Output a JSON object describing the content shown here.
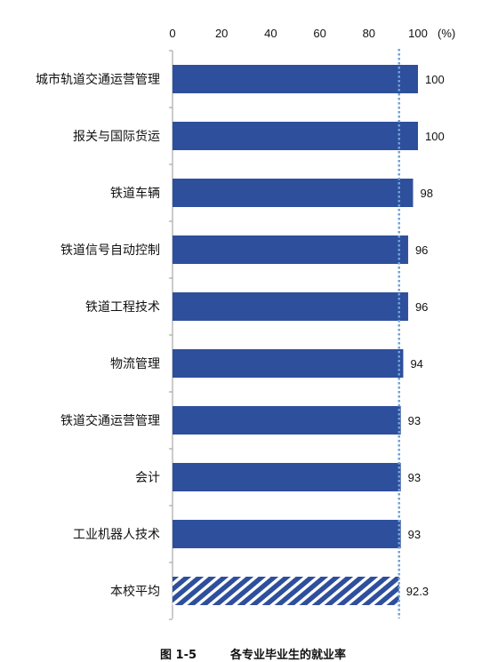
{
  "chart_data": {
    "type": "bar",
    "orientation": "horizontal",
    "title": "各专业毕业生的就业率",
    "figure_number": "图 1-5",
    "xlabel": "",
    "unit_label": "(%)",
    "xlim": [
      0,
      100
    ],
    "xticks": [
      0,
      20,
      40,
      60,
      80,
      100
    ],
    "categories": [
      "城市轨道交通运营管理",
      "报关与国际货运",
      "铁道车辆",
      "铁道信号自动控制",
      "铁道工程技术",
      "物流管理",
      "铁道交通运营管理",
      "会计",
      "工业机器人技术",
      "本校平均"
    ],
    "values": [
      100,
      100,
      98,
      96,
      96,
      94,
      93,
      93,
      93,
      92.3
    ],
    "value_labels": [
      "100",
      "100",
      "98",
      "96",
      "96",
      "94",
      "93",
      "93",
      "93",
      "92.3"
    ],
    "average_category": "本校平均",
    "reference_line": 92.3,
    "grid": false,
    "legend": "none"
  },
  "colors": {
    "bar": "#2e4f9c",
    "reference_line": "#6fa3d8",
    "axis": "#9a9a9a",
    "hatch_background": "#ffffff"
  }
}
